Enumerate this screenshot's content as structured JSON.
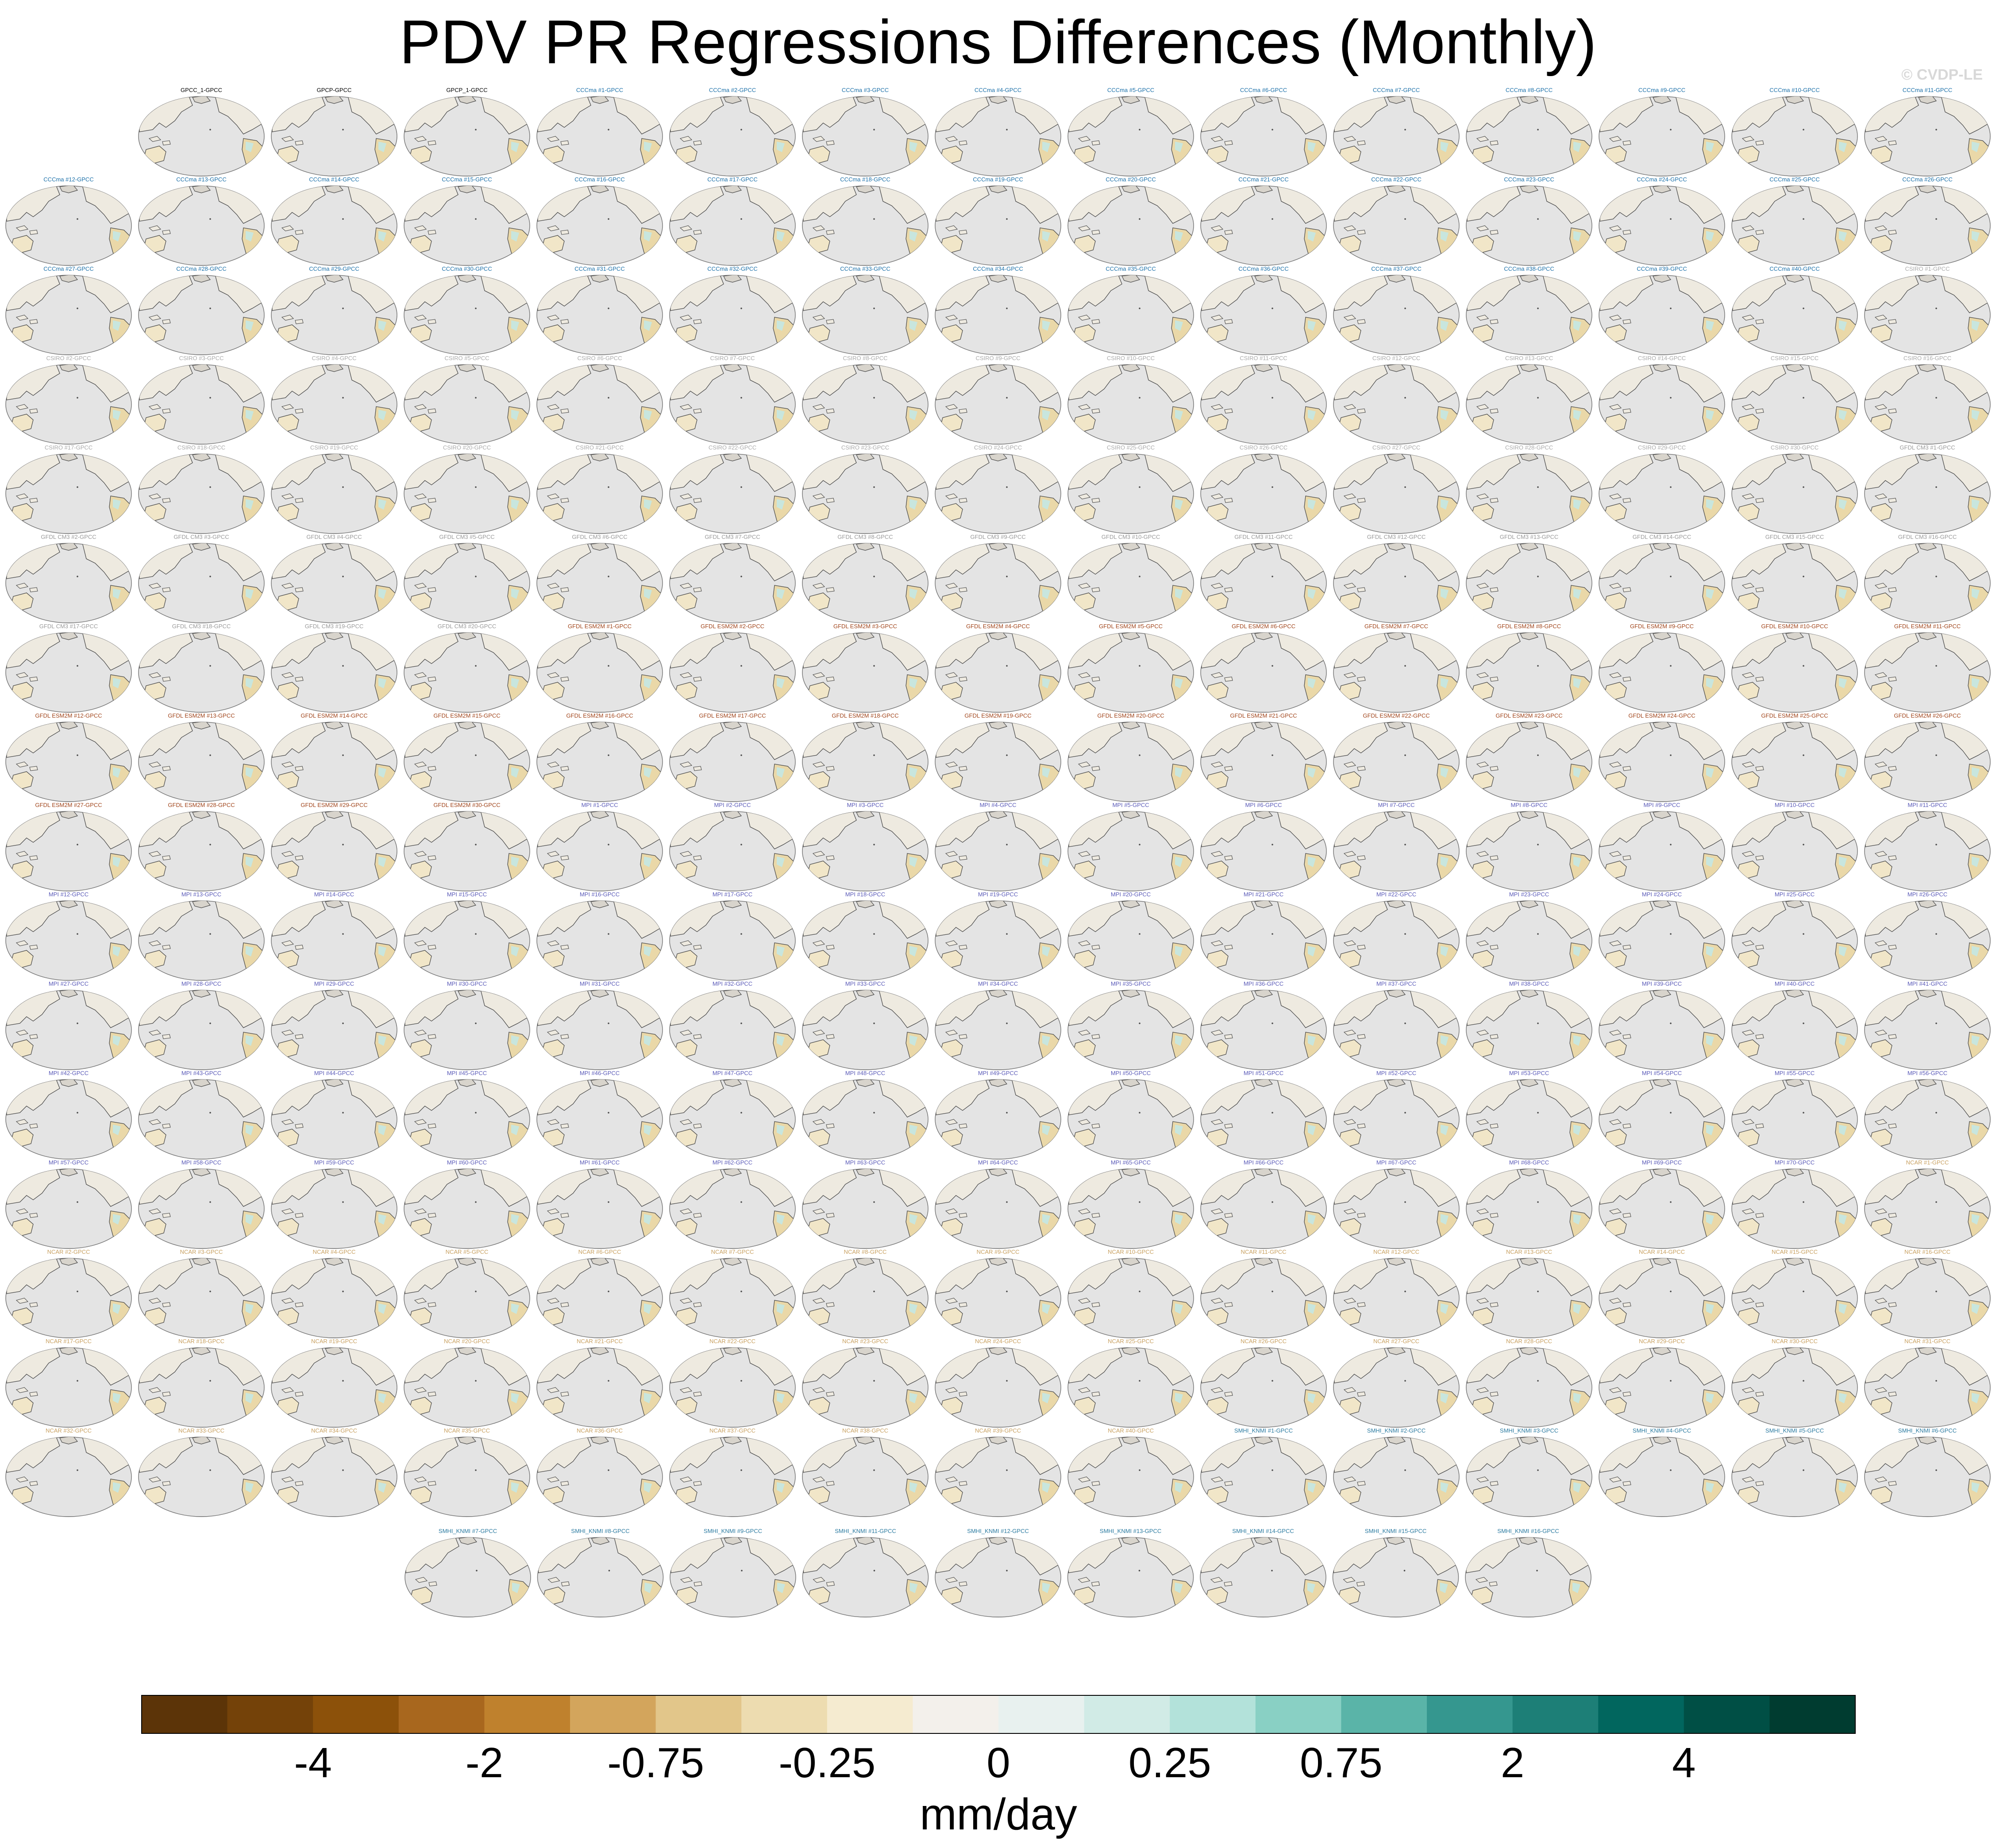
{
  "title": "PDV PR Regressions Differences (Monthly)",
  "watermark": "© CVDP-LE",
  "chart_data": {
    "type": "map-grid",
    "variable": "PR",
    "mode": "PDV regression differences",
    "season": "Monthly",
    "rows": 17,
    "cols": 15,
    "panel_titles": [
      "GPCC_1-GPCC",
      "GPCP-GPCC",
      "GPCP_1-GPCC",
      "CCCma #1-GPCC",
      "CCCma #2-GPCC",
      "CCCma #3-GPCC",
      "CCCma #4-GPCC",
      "CCCma #5-GPCC",
      "CCCma #6-GPCC",
      "CCCma #7-GPCC",
      "CCCma #8-GPCC",
      "CCCma #9-GPCC",
      "CCCma #10-GPCC",
      "CCCma #11-GPCC",
      "CCCma #12-GPCC",
      "CCCma #13-GPCC",
      "CCCma #14-GPCC",
      "CCCma #15-GPCC",
      "CCCma #16-GPCC",
      "CCCma #17-GPCC",
      "CCCma #18-GPCC",
      "CCCma #19-GPCC",
      "CCCma #20-GPCC",
      "CCCma #21-GPCC",
      "CCCma #22-GPCC",
      "CCCma #23-GPCC",
      "CCCma #24-GPCC",
      "CCCma #25-GPCC",
      "CCCma #26-GPCC",
      "CCCma #27-GPCC",
      "CCCma #28-GPCC",
      "CCCma #29-GPCC",
      "CCCma #30-GPCC",
      "CCCma #31-GPCC",
      "CCCma #32-GPCC",
      "CCCma #33-GPCC",
      "CCCma #34-GPCC",
      "CCCma #35-GPCC",
      "CCCma #36-GPCC",
      "CCCma #37-GPCC",
      "CCCma #38-GPCC",
      "CCCma #39-GPCC",
      "CCCma #40-GPCC",
      "CSIRO #1-GPCC",
      "CSIRO #2-GPCC",
      "CSIRO #3-GPCC",
      "CSIRO #4-GPCC",
      "CSIRO #5-GPCC",
      "CSIRO #6-GPCC",
      "CSIRO #7-GPCC",
      "CSIRO #8-GPCC",
      "CSIRO #9-GPCC",
      "CSIRO #10-GPCC",
      "CSIRO #11-GPCC",
      "CSIRO #12-GPCC",
      "CSIRO #13-GPCC",
      "CSIRO #14-GPCC",
      "CSIRO #15-GPCC",
      "CSIRO #16-GPCC",
      "CSIRO #17-GPCC",
      "CSIRO #18-GPCC",
      "CSIRO #19-GPCC",
      "CSIRO #20-GPCC",
      "CSIRO #21-GPCC",
      "CSIRO #22-GPCC",
      "CSIRO #23-GPCC",
      "CSIRO #24-GPCC",
      "CSIRO #25-GPCC",
      "CSIRO #26-GPCC",
      "CSIRO #27-GPCC",
      "CSIRO #28-GPCC",
      "CSIRO #29-GPCC",
      "CSIRO #30-GPCC",
      "GFDL CM3 #1-GPCC",
      "GFDL CM3 #2-GPCC",
      "GFDL CM3 #3-GPCC",
      "GFDL CM3 #4-GPCC",
      "GFDL CM3 #5-GPCC",
      "GFDL CM3 #6-GPCC",
      "GFDL CM3 #7-GPCC",
      "GFDL CM3 #8-GPCC",
      "GFDL CM3 #9-GPCC",
      "GFDL CM3 #10-GPCC",
      "GFDL CM3 #11-GPCC",
      "GFDL CM3 #12-GPCC",
      "GFDL CM3 #13-GPCC",
      "GFDL CM3 #14-GPCC",
      "GFDL CM3 #15-GPCC",
      "GFDL CM3 #16-GPCC",
      "GFDL CM3 #17-GPCC",
      "GFDL CM3 #18-GPCC",
      "GFDL CM3 #19-GPCC",
      "GFDL CM3 #20-GPCC",
      "GFDL ESM2M #1-GPCC",
      "GFDL ESM2M #2-GPCC",
      "GFDL ESM2M #3-GPCC",
      "GFDL ESM2M #4-GPCC",
      "GFDL ESM2M #5-GPCC",
      "GFDL ESM2M #6-GPCC",
      "GFDL ESM2M #7-GPCC",
      "GFDL ESM2M #8-GPCC",
      "GFDL ESM2M #9-GPCC",
      "GFDL ESM2M #10-GPCC",
      "GFDL ESM2M #11-GPCC",
      "GFDL ESM2M #12-GPCC",
      "GFDL ESM2M #13-GPCC",
      "GFDL ESM2M #14-GPCC",
      "GFDL ESM2M #15-GPCC",
      "GFDL ESM2M #16-GPCC",
      "GFDL ESM2M #17-GPCC",
      "GFDL ESM2M #18-GPCC",
      "GFDL ESM2M #19-GPCC",
      "GFDL ESM2M #20-GPCC",
      "GFDL ESM2M #21-GPCC",
      "GFDL ESM2M #22-GPCC",
      "GFDL ESM2M #23-GPCC",
      "GFDL ESM2M #24-GPCC",
      "GFDL ESM2M #25-GPCC",
      "GFDL ESM2M #26-GPCC",
      "GFDL ESM2M #27-GPCC",
      "GFDL ESM2M #28-GPCC",
      "GFDL ESM2M #29-GPCC",
      "GFDL ESM2M #30-GPCC",
      "MPI #1-GPCC",
      "MPI #2-GPCC",
      "MPI #3-GPCC",
      "MPI #4-GPCC",
      "MPI #5-GPCC",
      "MPI #6-GPCC",
      "MPI #7-GPCC",
      "MPI #8-GPCC",
      "MPI #9-GPCC",
      "MPI #10-GPCC",
      "MPI #11-GPCC",
      "MPI #12-GPCC",
      "MPI #13-GPCC",
      "MPI #14-GPCC",
      "MPI #15-GPCC",
      "MPI #16-GPCC",
      "MPI #17-GPCC",
      "MPI #18-GPCC",
      "MPI #19-GPCC",
      "MPI #20-GPCC",
      "MPI #21-GPCC",
      "MPI #22-GPCC",
      "MPI #23-GPCC",
      "MPI #24-GPCC",
      "MPI #25-GPCC",
      "MPI #26-GPCC",
      "MPI #27-GPCC",
      "MPI #28-GPCC",
      "MPI #29-GPCC",
      "MPI #30-GPCC",
      "MPI #31-GPCC",
      "MPI #32-GPCC",
      "MPI #33-GPCC",
      "MPI #34-GPCC",
      "MPI #35-GPCC",
      "MPI #36-GPCC",
      "MPI #37-GPCC",
      "MPI #38-GPCC",
      "MPI #39-GPCC",
      "MPI #40-GPCC",
      "MPI #41-GPCC",
      "MPI #42-GPCC",
      "MPI #43-GPCC",
      "MPI #44-GPCC",
      "MPI #45-GPCC",
      "MPI #46-GPCC",
      "MPI #47-GPCC",
      "MPI #48-GPCC",
      "MPI #49-GPCC",
      "MPI #50-GPCC",
      "MPI #51-GPCC",
      "MPI #52-GPCC",
      "MPI #53-GPCC",
      "MPI #54-GPCC",
      "MPI #55-GPCC",
      "MPI #56-GPCC",
      "MPI #57-GPCC",
      "MPI #58-GPCC",
      "MPI #59-GPCC",
      "MPI #60-GPCC",
      "MPI #61-GPCC",
      "MPI #62-GPCC",
      "MPI #63-GPCC",
      "MPI #64-GPCC",
      "MPI #65-GPCC",
      "MPI #66-GPCC",
      "MPI #67-GPCC",
      "MPI #68-GPCC",
      "MPI #69-GPCC",
      "MPI #70-GPCC",
      "NCAR #1-GPCC",
      "NCAR #2-GPCC",
      "NCAR #3-GPCC",
      "NCAR #4-GPCC",
      "NCAR #5-GPCC",
      "NCAR #6-GPCC",
      "NCAR #7-GPCC",
      "NCAR #8-GPCC",
      "NCAR #9-GPCC",
      "NCAR #10-GPCC",
      "NCAR #11-GPCC",
      "NCAR #12-GPCC",
      "NCAR #13-GPCC",
      "NCAR #14-GPCC",
      "NCAR #15-GPCC",
      "NCAR #16-GPCC",
      "NCAR #17-GPCC",
      "NCAR #18-GPCC",
      "NCAR #19-GPCC",
      "NCAR #20-GPCC",
      "NCAR #21-GPCC",
      "NCAR #22-GPCC",
      "NCAR #23-GPCC",
      "NCAR #24-GPCC",
      "NCAR #25-GPCC",
      "NCAR #26-GPCC",
      "NCAR #27-GPCC",
      "NCAR #28-GPCC",
      "NCAR #29-GPCC",
      "NCAR #30-GPCC",
      "NCAR #31-GPCC",
      "NCAR #32-GPCC",
      "NCAR #33-GPCC",
      "NCAR #34-GPCC",
      "NCAR #35-GPCC",
      "NCAR #36-GPCC",
      "NCAR #37-GPCC",
      "NCAR #38-GPCC",
      "NCAR #39-GPCC",
      "NCAR #40-GPCC",
      "SMHI_KNMI #1-GPCC",
      "SMHI_KNMI #2-GPCC",
      "SMHI_KNMI #3-GPCC",
      "SMHI_KNMI #4-GPCC",
      "SMHI_KNMI #5-GPCC",
      "SMHI_KNMI #6-GPCC",
      "SMHI_KNMI #7-GPCC",
      "SMHI_KNMI #8-GPCC",
      "SMHI_KNMI #9-GPCC",
      "SMHI_KNMI #11-GPCC",
      "SMHI_KNMI #12-GPCC",
      "SMHI_KNMI #13-GPCC",
      "SMHI_KNMI #14-GPCC",
      "SMHI_KNMI #15-GPCC",
      "SMHI_KNMI #16-GPCC"
    ],
    "title_colors": {
      "GPC": "#000000",
      "CCCma": "#1a6fa8",
      "CSIRO": "#aaaaaa",
      "GFDL CM3": "#999999",
      "GFDL ESM2M": "#a0441a",
      "MPI": "#5a5ab8",
      "NCAR": "#c8a060",
      "SMHI_KNMI": "#2a7aa0"
    },
    "map_colors": {
      "ocean": "#e4e4e4",
      "coast": "#4a4a4a"
    },
    "colorbar": {
      "label": "mm/day",
      "levels": [
        -5,
        -4,
        -3,
        -2,
        -1,
        -0.75,
        -0.5,
        -0.25,
        -0.1,
        0,
        0.1,
        0.25,
        0.5,
        0.75,
        1,
        2,
        3,
        4,
        5
      ],
      "tick_labels": [
        {
          "value": -4,
          "label": "-4"
        },
        {
          "value": -2,
          "label": "-2"
        },
        {
          "value": -0.75,
          "label": "-0.75"
        },
        {
          "value": -0.25,
          "label": "-0.25"
        },
        {
          "value": 0,
          "label": "0"
        },
        {
          "value": 0.25,
          "label": "0.25"
        },
        {
          "value": 0.75,
          "label": "0.75"
        },
        {
          "value": 2,
          "label": "2"
        },
        {
          "value": 4,
          "label": "4"
        }
      ],
      "colors": [
        "#5c3408",
        "#744209",
        "#8c510a",
        "#a8671e",
        "#bf812d",
        "#d3a55c",
        "#e2c68a",
        "#eddcb0",
        "#f5ebd0",
        "#f3f0eb",
        "#e8f1ef",
        "#d1ebe6",
        "#b3e2da",
        "#89d0c4",
        "#5ab4a8",
        "#35978f",
        "#1d7f77",
        "#01665e",
        "#004f45",
        "#003c30"
      ]
    }
  }
}
